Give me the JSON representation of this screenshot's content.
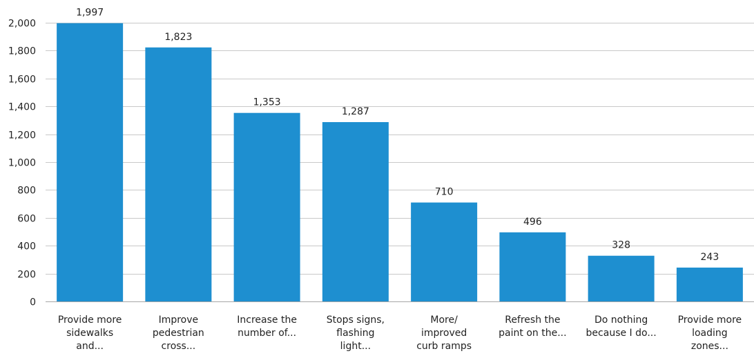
{
  "colors": {
    "bar": "#1e8fd0",
    "grid": "#c8c8c8",
    "text": "#222222"
  },
  "chart_data": {
    "type": "bar",
    "title": "",
    "xlabel": "",
    "ylabel": "",
    "ylim": [
      0,
      2000
    ],
    "yticks": [
      0,
      200,
      400,
      600,
      800,
      1000,
      1200,
      1400,
      1600,
      1800,
      2000
    ],
    "ytick_labels": [
      "0",
      "200",
      "400",
      "600",
      "800",
      "1,000",
      "1,200",
      "1,400",
      "1,600",
      "1,800",
      "2,000"
    ],
    "grid": true,
    "legend": "none",
    "categories": [
      [
        "Provide more",
        "sidewalks",
        "and..."
      ],
      [
        "Improve",
        "pedestrian",
        "cross..."
      ],
      [
        "Increase the",
        "number of..."
      ],
      [
        "Stops signs,",
        "flashing",
        "light..."
      ],
      [
        "More/",
        "improved",
        "curb ramps"
      ],
      [
        "Refresh the",
        "paint on the..."
      ],
      [
        "Do nothing",
        "because I do..."
      ],
      [
        "Provide more",
        "loading",
        "zones..."
      ]
    ],
    "values": [
      1997,
      1823,
      1353,
      1287,
      710,
      496,
      328,
      243
    ],
    "data_labels": [
      "1,997",
      "1,823",
      "1,353",
      "1,287",
      "710",
      "496",
      "328",
      "243"
    ]
  }
}
